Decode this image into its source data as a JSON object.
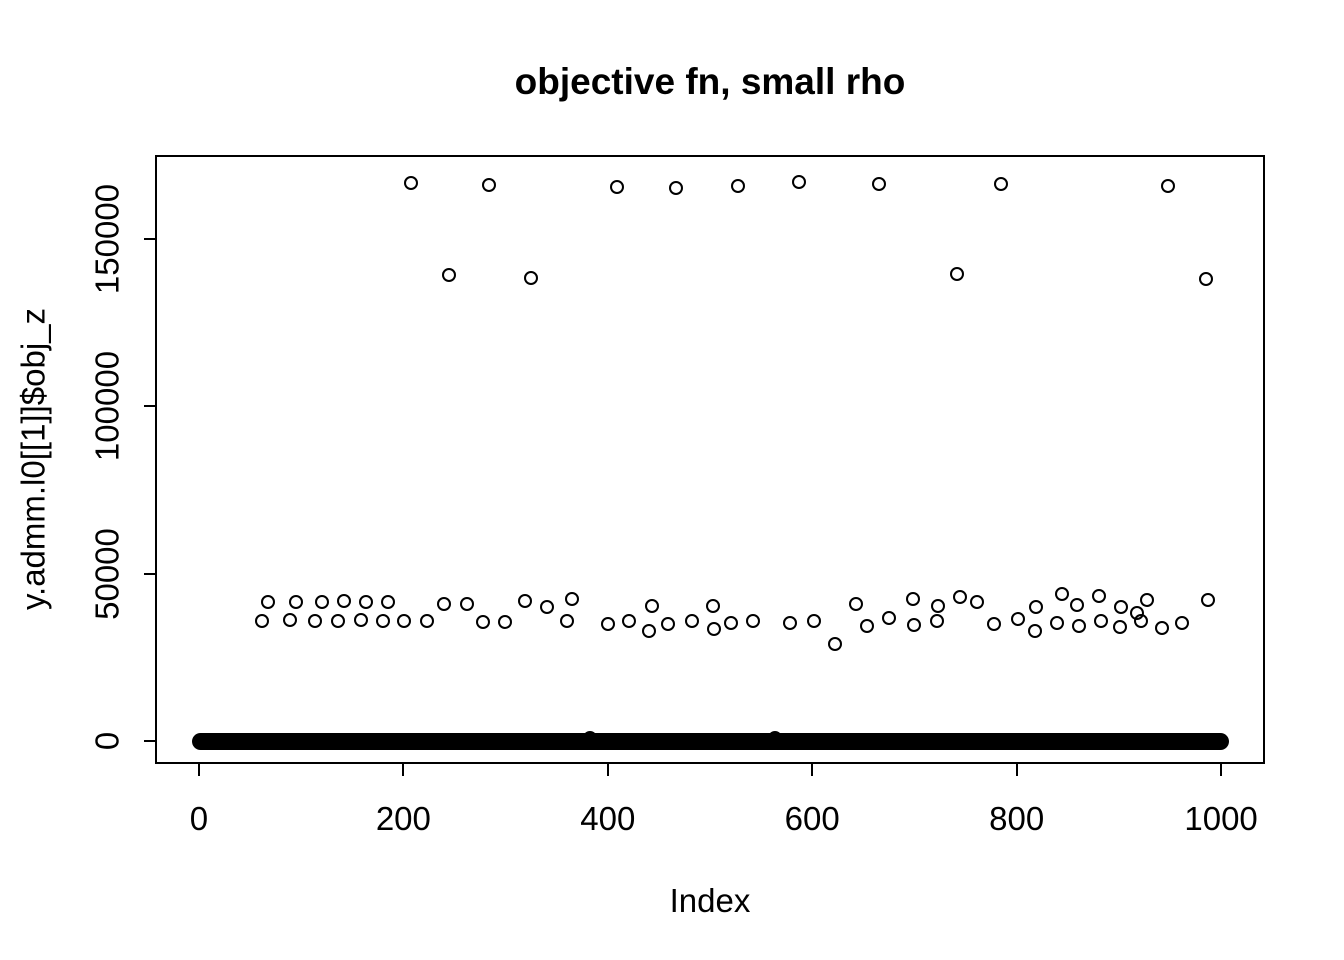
{
  "figure": {
    "background": "#ffffff",
    "foreground": "#000000"
  },
  "chart_data": {
    "type": "scatter",
    "title": "objective fn, small rho",
    "xlabel": "Index",
    "ylabel": "y.admm.l0[[1]]$obj_z",
    "xlim": [
      -41,
      1041
    ],
    "ylim": [
      -6250,
      174400
    ],
    "x_ticks": [
      0,
      200,
      400,
      600,
      800,
      1000
    ],
    "x_tick_labels": [
      "0",
      "200",
      "400",
      "600",
      "800",
      "1000"
    ],
    "y_ticks": [
      0,
      50000,
      100000,
      150000
    ],
    "y_tick_labels": [
      "0",
      "50000",
      "100000",
      "150000"
    ],
    "grid": false,
    "legend": null,
    "marker": "open-circle",
    "point_color": "#000000",
    "zero_band": {
      "x_start": 1,
      "x_end": 1000,
      "y": 0,
      "description": "~900 overlapping points at y ≈ 0 forming a solid black band"
    },
    "points": [
      [
        207,
        166500
      ],
      [
        284,
        166000
      ],
      [
        409,
        165500
      ],
      [
        467,
        165000
      ],
      [
        527,
        165800
      ],
      [
        587,
        167000
      ],
      [
        665,
        166400
      ],
      [
        785,
        166200
      ],
      [
        948,
        165700
      ],
      [
        245,
        139200
      ],
      [
        325,
        138400
      ],
      [
        742,
        139400
      ],
      [
        985,
        138000
      ],
      [
        62,
        36000
      ],
      [
        68,
        41500
      ],
      [
        89,
        36200
      ],
      [
        95,
        41500
      ],
      [
        114,
        36000
      ],
      [
        120,
        41500
      ],
      [
        136,
        36000
      ],
      [
        142,
        41800
      ],
      [
        159,
        36200
      ],
      [
        163,
        41500
      ],
      [
        180,
        36000
      ],
      [
        185,
        41500
      ],
      [
        201,
        36000
      ],
      [
        223,
        36000
      ],
      [
        240,
        41000
      ],
      [
        262,
        41000
      ],
      [
        278,
        35500
      ],
      [
        299,
        35500
      ],
      [
        319,
        41800
      ],
      [
        341,
        40000
      ],
      [
        360,
        36000
      ],
      [
        365,
        42300
      ],
      [
        400,
        35000
      ],
      [
        421,
        36000
      ],
      [
        440,
        33000
      ],
      [
        443,
        40200
      ],
      [
        459,
        35000
      ],
      [
        482,
        36000
      ],
      [
        503,
        40200
      ],
      [
        504,
        33600
      ],
      [
        521,
        35400
      ],
      [
        542,
        36000
      ],
      [
        578,
        35400
      ],
      [
        602,
        36000
      ],
      [
        622,
        29000
      ],
      [
        643,
        41000
      ],
      [
        654,
        34500
      ],
      [
        675,
        36600
      ],
      [
        699,
        42300
      ],
      [
        700,
        34800
      ],
      [
        722,
        36000
      ],
      [
        723,
        40200
      ],
      [
        745,
        42900
      ],
      [
        761,
        41400
      ],
      [
        778,
        35100
      ],
      [
        801,
        36300
      ],
      [
        818,
        32800
      ],
      [
        819,
        39900
      ],
      [
        839,
        35400
      ],
      [
        844,
        43800
      ],
      [
        859,
        40500
      ],
      [
        861,
        34500
      ],
      [
        881,
        43400
      ],
      [
        883,
        36000
      ],
      [
        901,
        34200
      ],
      [
        902,
        39900
      ],
      [
        918,
        38100
      ],
      [
        922,
        36000
      ],
      [
        928,
        42200
      ],
      [
        942,
        33900
      ],
      [
        962,
        35400
      ],
      [
        987,
        42000
      ],
      [
        383,
        1000
      ],
      [
        564,
        1000
      ]
    ]
  }
}
